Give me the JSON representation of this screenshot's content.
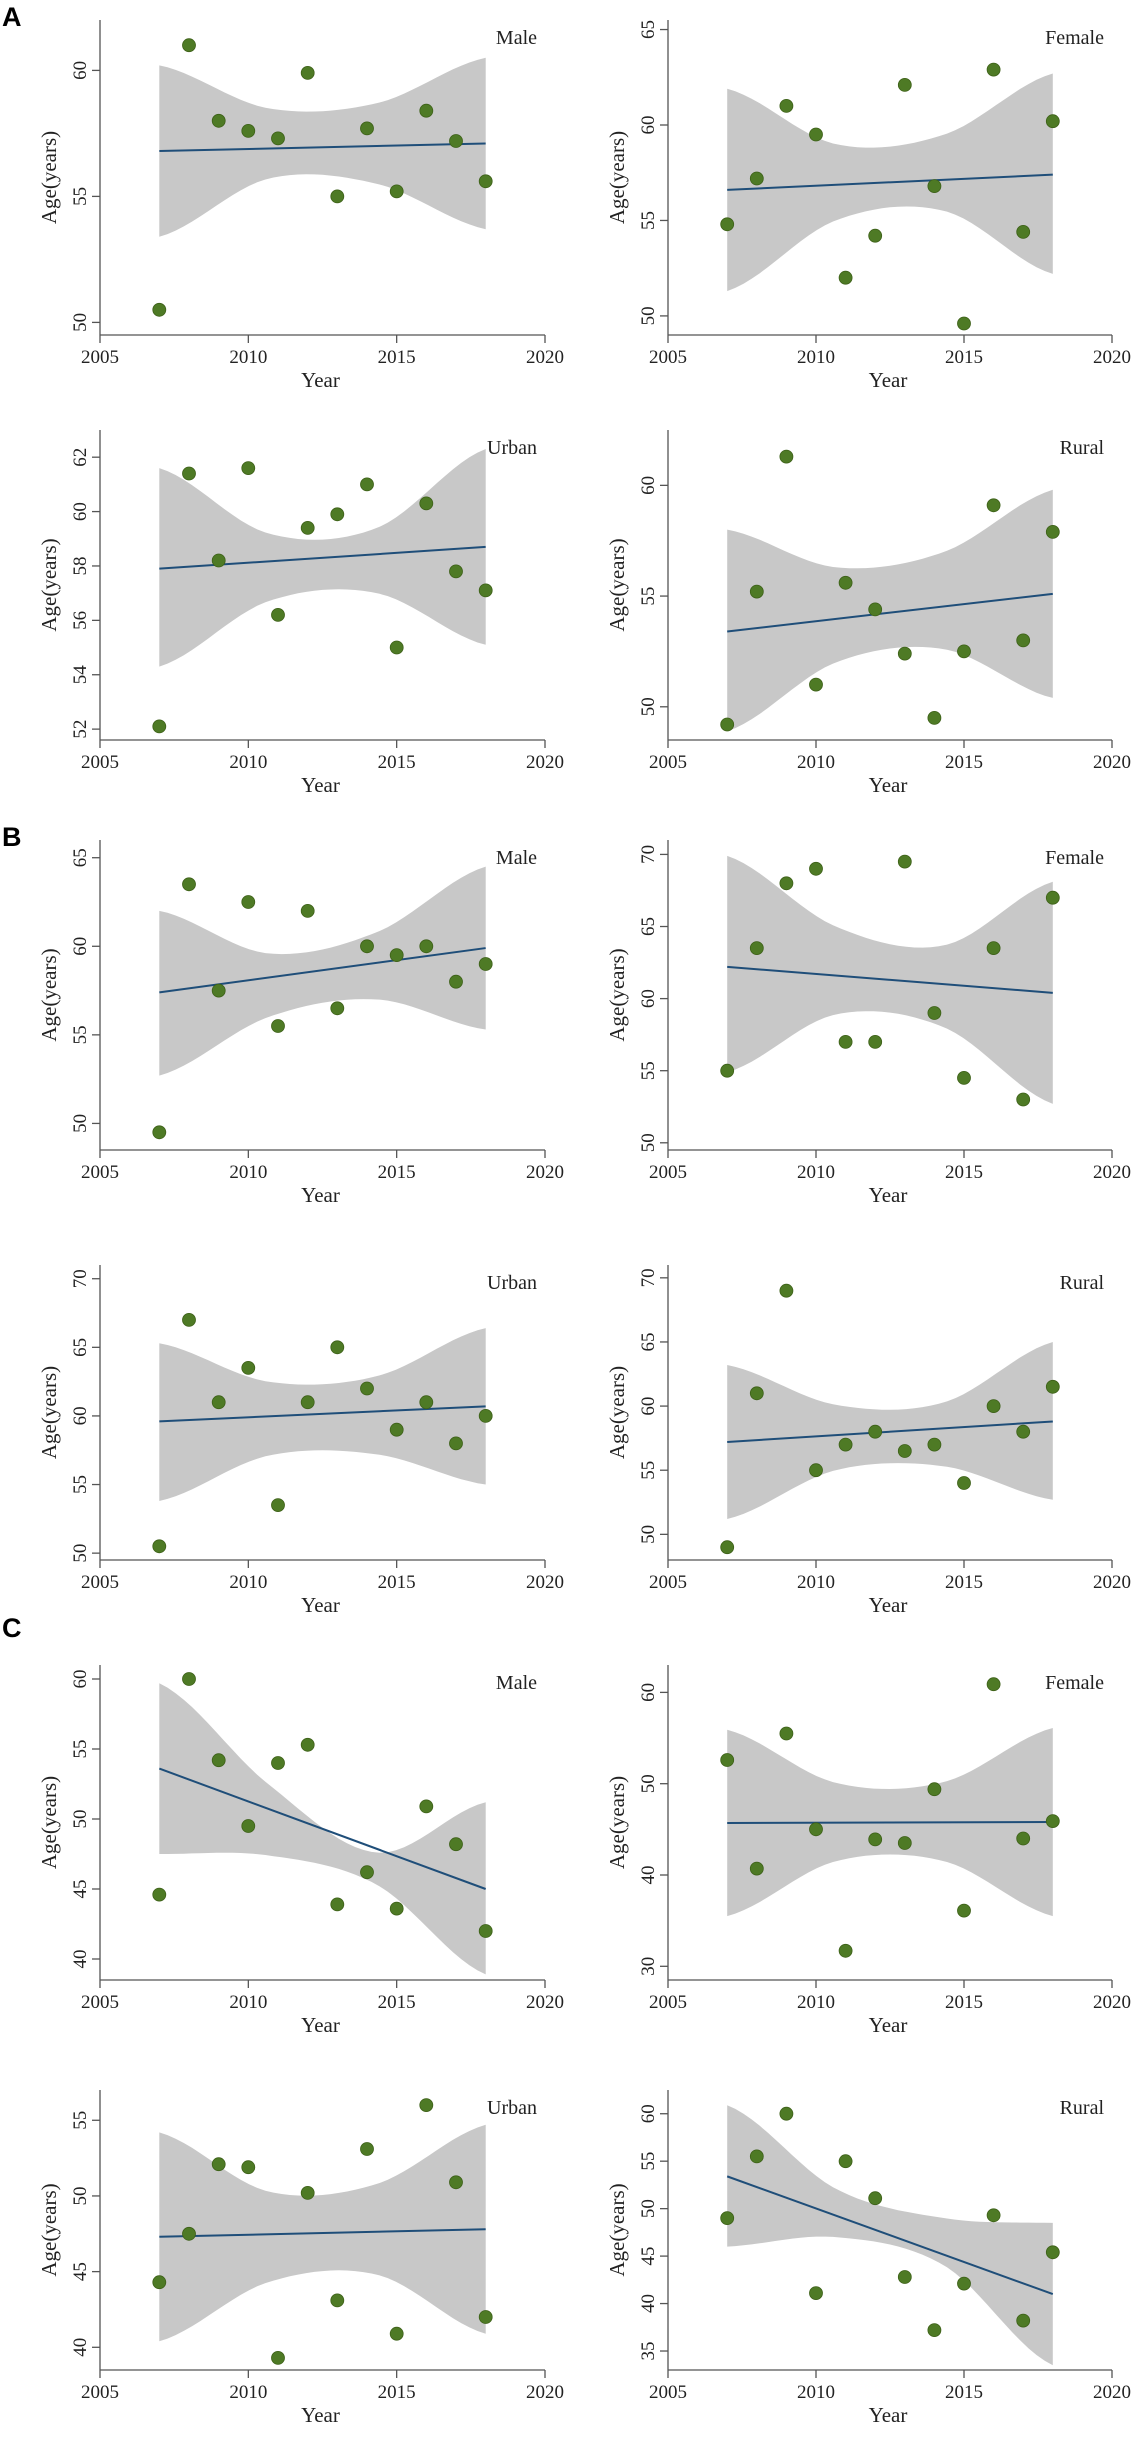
{
  "colors": {
    "point": "#4e7a25",
    "point_edge": "#3d6018",
    "fit_line": "#1f4e79",
    "ci_band": "#c8c8c8",
    "axis": "#555555"
  },
  "panel_labels": [
    "A",
    "B",
    "C"
  ],
  "chart_data": [
    {
      "type": "scatter",
      "panel": "A",
      "title": "Male",
      "xlabel": "Year",
      "ylabel": "Age(years)",
      "xlim": [
        2005,
        2020
      ],
      "xticks": [
        2005,
        2010,
        2015,
        2020
      ],
      "ylim": [
        49.5,
        62
      ],
      "yticks": [
        50,
        55,
        60
      ],
      "x": [
        2007,
        2008,
        2009,
        2010,
        2011,
        2012,
        2013,
        2014,
        2015,
        2016,
        2017,
        2018
      ],
      "y": [
        50.5,
        61.0,
        58.0,
        57.6,
        57.3,
        59.9,
        55.0,
        57.7,
        55.2,
        58.4,
        57.2,
        55.6
      ],
      "fit": [
        56.8,
        57.1
      ],
      "ci_lower": [
        53.4,
        55.7,
        55.5,
        53.7
      ],
      "ci_upper": [
        60.2,
        58.5,
        58.7,
        60.5
      ]
    },
    {
      "type": "scatter",
      "panel": "A",
      "title": "Female",
      "xlabel": "Year",
      "ylabel": "Age(years)",
      "xlim": [
        2005,
        2020
      ],
      "xticks": [
        2005,
        2010,
        2015,
        2020
      ],
      "ylim": [
        49,
        65.5
      ],
      "yticks": [
        50,
        55,
        60,
        65
      ],
      "x": [
        2007,
        2008,
        2009,
        2010,
        2011,
        2012,
        2013,
        2014,
        2015,
        2016,
        2017,
        2018
      ],
      "y": [
        54.8,
        57.2,
        61.0,
        59.5,
        52.0,
        54.2,
        62.1,
        56.8,
        49.6,
        62.9,
        54.4,
        60.2
      ],
      "fit": [
        56.6,
        57.4
      ],
      "ci_lower": [
        51.3,
        55.0,
        55.5,
        52.2
      ],
      "ci_upper": [
        61.9,
        59.0,
        59.5,
        62.7
      ]
    },
    {
      "type": "scatter",
      "panel": "A",
      "title": "Urban",
      "xlabel": "Year",
      "ylabel": "Age(years)",
      "xlim": [
        2005,
        2020
      ],
      "xticks": [
        2005,
        2010,
        2015,
        2020
      ],
      "ylim": [
        51.6,
        63
      ],
      "yticks": [
        52,
        54,
        56,
        58,
        60,
        62
      ],
      "x": [
        2007,
        2008,
        2009,
        2010,
        2011,
        2012,
        2013,
        2014,
        2015,
        2016,
        2017,
        2018
      ],
      "y": [
        52.1,
        61.4,
        58.2,
        61.6,
        56.2,
        59.4,
        59.9,
        61.0,
        55.0,
        60.3,
        57.8,
        57.1
      ],
      "fit": [
        57.9,
        58.7
      ],
      "ci_lower": [
        54.3,
        56.7,
        57.0,
        55.1
      ],
      "ci_upper": [
        61.6,
        59.2,
        59.4,
        62.3
      ]
    },
    {
      "type": "scatter",
      "panel": "A",
      "title": "Rural",
      "xlabel": "Year",
      "ylabel": "Age(years)",
      "xlim": [
        2005,
        2020
      ],
      "xticks": [
        2005,
        2010,
        2015,
        2020
      ],
      "ylim": [
        48.5,
        62.5
      ],
      "yticks": [
        50,
        55,
        60
      ],
      "x": [
        2007,
        2008,
        2009,
        2010,
        2011,
        2012,
        2013,
        2014,
        2015,
        2016,
        2017,
        2018
      ],
      "y": [
        49.2,
        55.2,
        61.3,
        51.0,
        55.6,
        54.4,
        52.4,
        49.5,
        52.5,
        59.1,
        53.0,
        57.9
      ],
      "fit": [
        53.4,
        55.1
      ],
      "ci_lower": [
        48.9,
        52.0,
        52.6,
        50.4
      ],
      "ci_upper": [
        58.0,
        56.3,
        57.0,
        59.8
      ]
    },
    {
      "type": "scatter",
      "panel": "B",
      "title": "Male",
      "xlabel": "Year",
      "ylabel": "Age(years)",
      "xlim": [
        2005,
        2020
      ],
      "xticks": [
        2005,
        2010,
        2015,
        2020
      ],
      "ylim": [
        48.5,
        66
      ],
      "yticks": [
        50,
        55,
        60,
        65
      ],
      "x": [
        2007,
        2008,
        2009,
        2010,
        2011,
        2012,
        2013,
        2014,
        2015,
        2016,
        2017,
        2018
      ],
      "y": [
        49.5,
        63.5,
        57.5,
        62.5,
        55.5,
        62.0,
        56.5,
        60.0,
        59.5,
        60.0,
        58.0,
        59.0
      ],
      "fit": [
        57.4,
        59.9
      ],
      "ci_lower": [
        52.7,
        56.0,
        57.0,
        55.3
      ],
      "ci_upper": [
        62.0,
        59.6,
        60.8,
        64.5
      ]
    },
    {
      "type": "scatter",
      "panel": "B",
      "title": "Female",
      "xlabel": "Year",
      "ylabel": "Age(years)",
      "xlim": [
        2005,
        2020
      ],
      "xticks": [
        2005,
        2010,
        2015,
        2020
      ],
      "ylim": [
        49.5,
        71
      ],
      "yticks": [
        50,
        55,
        60,
        65,
        70
      ],
      "x": [
        2007,
        2008,
        2009,
        2010,
        2011,
        2012,
        2013,
        2014,
        2015,
        2016,
        2017,
        2018
      ],
      "y": [
        55.0,
        63.5,
        68.0,
        69.0,
        57.0,
        57.0,
        69.5,
        59.0,
        54.5,
        63.5,
        53.0,
        67.0
      ],
      "fit": [
        62.2,
        60.4
      ],
      "ci_lower": [
        54.9,
        58.9,
        58.0,
        52.7
      ],
      "ci_upper": [
        69.9,
        65.0,
        63.7,
        68.1
      ]
    },
    {
      "type": "scatter",
      "panel": "B",
      "title": "Urban",
      "xlabel": "Year",
      "ylabel": "Age(years)",
      "xlim": [
        2005,
        2020
      ],
      "xticks": [
        2005,
        2010,
        2015,
        2020
      ],
      "ylim": [
        49.5,
        71
      ],
      "yticks": [
        50,
        55,
        60,
        65,
        70
      ],
      "x": [
        2007,
        2008,
        2009,
        2010,
        2011,
        2012,
        2013,
        2014,
        2015,
        2016,
        2017,
        2018
      ],
      "y": [
        50.5,
        67.0,
        61.0,
        63.5,
        53.5,
        61.0,
        65.0,
        62.0,
        59.0,
        61.0,
        58.0,
        60.0
      ],
      "fit": [
        59.6,
        60.7
      ],
      "ci_lower": [
        53.8,
        57.1,
        57.2,
        55.0
      ],
      "ci_upper": [
        65.3,
        62.5,
        62.9,
        66.4
      ]
    },
    {
      "type": "scatter",
      "panel": "B",
      "title": "Rural",
      "xlabel": "Year",
      "ylabel": "Age(years)",
      "xlim": [
        2005,
        2020
      ],
      "xticks": [
        2005,
        2010,
        2015,
        2020
      ],
      "ylim": [
        48,
        71
      ],
      "yticks": [
        50,
        55,
        60,
        65,
        70
      ],
      "x": [
        2007,
        2008,
        2009,
        2010,
        2011,
        2012,
        2013,
        2014,
        2015,
        2016,
        2017,
        2018
      ],
      "y": [
        49.0,
        61.0,
        69.0,
        55.0,
        57.0,
        58.0,
        56.5,
        57.0,
        54.0,
        60.0,
        58.0,
        61.5
      ],
      "fit": [
        57.2,
        58.8
      ],
      "ci_lower": [
        51.2,
        55.0,
        55.3,
        52.7
      ],
      "ci_upper": [
        63.2,
        60.1,
        60.3,
        65.0
      ]
    },
    {
      "type": "scatter",
      "panel": "C",
      "title": "Male",
      "xlabel": "Year",
      "ylabel": "Age(years)",
      "xlim": [
        2005,
        2020
      ],
      "xticks": [
        2005,
        2010,
        2015,
        2020
      ],
      "ylim": [
        38.5,
        61
      ],
      "yticks": [
        40,
        45,
        50,
        55,
        60
      ],
      "x": [
        2007,
        2008,
        2009,
        2010,
        2011,
        2012,
        2013,
        2014,
        2015,
        2016,
        2017,
        2018
      ],
      "y": [
        44.6,
        60.0,
        54.2,
        49.5,
        54.0,
        55.3,
        43.9,
        46.2,
        43.6,
        50.9,
        48.2,
        42.0
      ],
      "fit": [
        53.6,
        45.0
      ],
      "ci_lower": [
        47.5,
        47.4,
        45.3,
        38.9
      ],
      "ci_upper": [
        59.7,
        52.5,
        47.6,
        51.2
      ]
    },
    {
      "type": "scatter",
      "panel": "C",
      "title": "Female",
      "xlabel": "Year",
      "ylabel": "Age(years)",
      "xlim": [
        2005,
        2020
      ],
      "xticks": [
        2005,
        2010,
        2015,
        2020
      ],
      "ylim": [
        28.5,
        63
      ],
      "yticks": [
        30,
        40,
        50,
        60
      ],
      "x": [
        2007,
        2008,
        2009,
        2010,
        2011,
        2012,
        2013,
        2014,
        2015,
        2016,
        2017,
        2018
      ],
      "y": [
        52.6,
        40.7,
        55.5,
        45.0,
        31.7,
        43.9,
        43.5,
        49.4,
        36.1,
        60.9,
        44.0,
        45.9
      ],
      "fit": [
        45.7,
        45.8
      ],
      "ci_lower": [
        35.5,
        41.5,
        41.5,
        35.5
      ],
      "ci_upper": [
        55.9,
        50.1,
        50.2,
        56.1
      ]
    },
    {
      "type": "scatter",
      "panel": "C",
      "title": "Urban",
      "xlabel": "Year",
      "ylabel": "Age(years)",
      "xlim": [
        2005,
        2020
      ],
      "xticks": [
        2005,
        2010,
        2015,
        2020
      ],
      "ylim": [
        38.5,
        57
      ],
      "yticks": [
        40,
        45,
        50,
        55
      ],
      "x": [
        2007,
        2008,
        2009,
        2010,
        2011,
        2012,
        2013,
        2014,
        2015,
        2016,
        2017,
        2018
      ],
      "y": [
        44.3,
        47.5,
        52.1,
        51.9,
        39.3,
        50.2,
        43.1,
        53.1,
        40.9,
        56.0,
        50.9,
        42.0
      ],
      "fit": [
        47.3,
        47.8
      ],
      "ci_lower": [
        40.4,
        44.3,
        44.8,
        40.9
      ],
      "ci_upper": [
        54.2,
        50.3,
        50.8,
        54.7
      ]
    },
    {
      "type": "scatter",
      "panel": "C",
      "title": "Rural",
      "xlabel": "Year",
      "ylabel": "Age(years)",
      "xlim": [
        2005,
        2020
      ],
      "xticks": [
        2005,
        2010,
        2015,
        2020
      ],
      "ylim": [
        33,
        62.5
      ],
      "yticks": [
        35,
        40,
        45,
        50,
        55,
        60
      ],
      "x": [
        2007,
        2008,
        2009,
        2010,
        2011,
        2012,
        2013,
        2014,
        2015,
        2016,
        2017,
        2018
      ],
      "y": [
        49.0,
        55.5,
        60.0,
        41.1,
        55.0,
        51.1,
        42.8,
        37.2,
        42.1,
        49.3,
        38.2,
        45.4
      ],
      "fit": [
        53.4,
        41.0
      ],
      "ci_lower": [
        46.0,
        47.0,
        44.0,
        33.5
      ],
      "ci_upper": [
        60.9,
        52.1,
        49.0,
        48.5
      ]
    }
  ]
}
